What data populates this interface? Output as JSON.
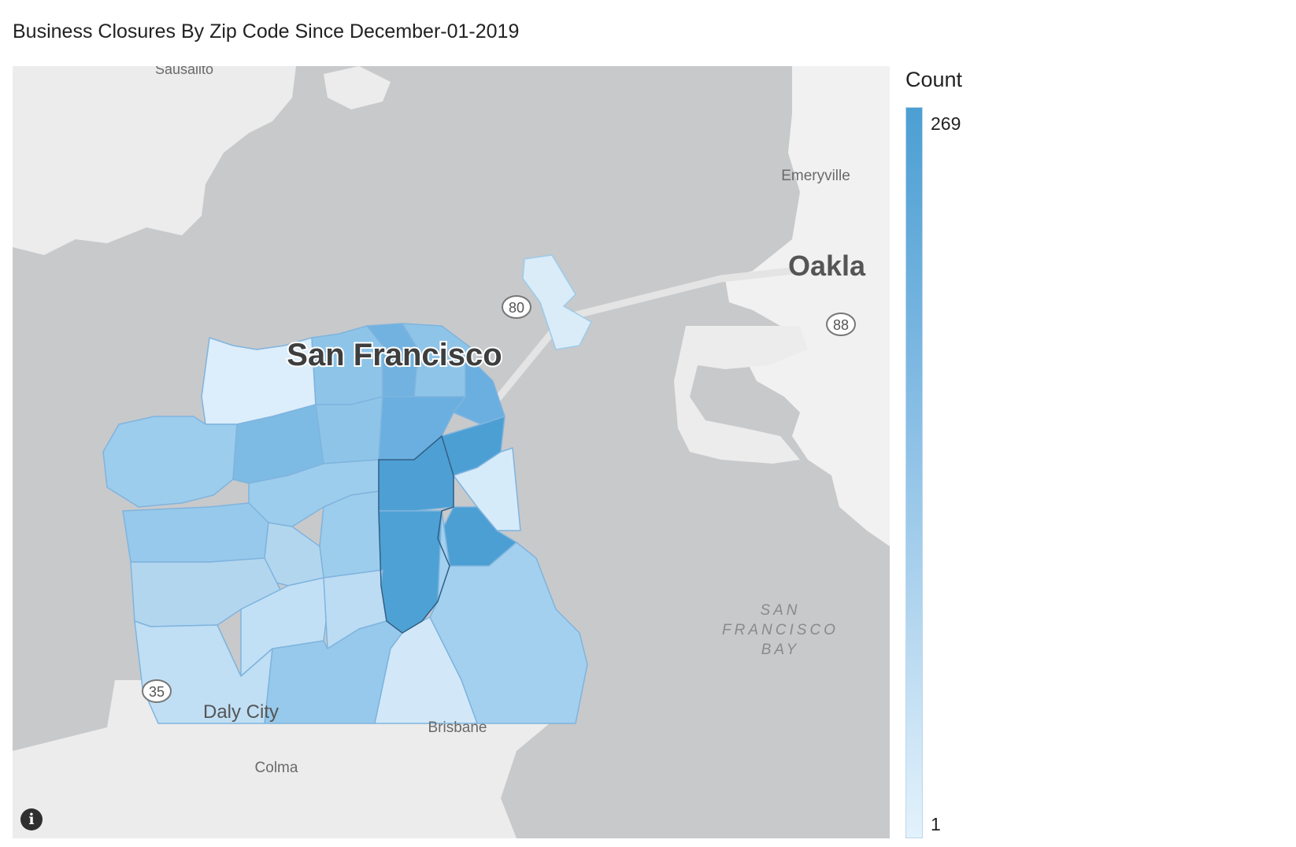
{
  "title": "Business Closures By Zip Code Since December-01-2019",
  "map": {
    "places": {
      "sausalito": "Sausalito",
      "emeryville": "Emeryville",
      "oakland": "Oakla",
      "san_francisco": "San Francisco",
      "daly_city": "Daly City",
      "brisbane": "Brisbane",
      "colma": "Colma",
      "bay_line1": "SAN",
      "bay_line2": "FRANCISCO",
      "bay_line3": "BAY"
    },
    "highways": {
      "i80": "80",
      "i88": "88",
      "i35": "35"
    },
    "info_icon": "info-icon",
    "info_glyph": "i"
  },
  "legend": {
    "title": "Count",
    "max": "269",
    "min": "1",
    "color_max": "#4c9fd3",
    "color_min": "#e3f2fc"
  }
}
